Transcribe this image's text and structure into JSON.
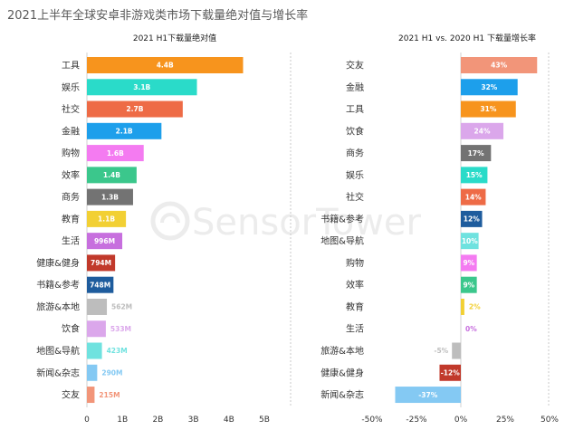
{
  "title": "2021上半年全球安卓非游戏类市场下载量绝对值与增长率",
  "watermark": "SensorTower",
  "category_colors": {
    "工具": "#F7941D",
    "娱乐": "#2ADBC9",
    "社交": "#EE6B46",
    "金融": "#1D9FEB",
    "购物": "#F47BF1",
    "效率": "#3BC78C",
    "商务": "#737373",
    "教育": "#F2D034",
    "生活": "#C76FDE",
    "健康&健身": "#C1392B",
    "书籍&参考": "#1E5C9D",
    "旅游&本地": "#BDBDBD",
    "饮食": "#DBA7EB",
    "地图&导航": "#6FE2DF",
    "新闻&杂志": "#84C9F3",
    "交友": "#F29579"
  },
  "chart_data": [
    {
      "type": "bar",
      "horizontal": true,
      "title": "2021 H1下载量绝对值",
      "categories": [
        "工具",
        "娱乐",
        "社交",
        "金融",
        "购物",
        "效率",
        "商务",
        "教育",
        "生活",
        "健康&健身",
        "书籍&参考",
        "旅游&本地",
        "饮食",
        "地图&导航",
        "新闻&杂志",
        "交友"
      ],
      "values": [
        4.4,
        3.1,
        2.7,
        2.1,
        1.6,
        1.4,
        1.3,
        1.1,
        0.996,
        0.794,
        0.748,
        0.562,
        0.533,
        0.423,
        0.29,
        0.215
      ],
      "value_labels": [
        "4.4B",
        "3.1B",
        "2.7B",
        "2.1B",
        "1.6B",
        "1.4B",
        "1.3B",
        "1.1B",
        "996M",
        "794M",
        "748M",
        "562M",
        "533M",
        "423M",
        "290M",
        "215M"
      ],
      "xlim": [
        0,
        5
      ],
      "x_tick_values": [
        0,
        1,
        2,
        3,
        4,
        5
      ],
      "x_tick_labels": [
        "0",
        "1B",
        "2B",
        "3B",
        "4B",
        "5B"
      ]
    },
    {
      "type": "bar",
      "horizontal": true,
      "title": "2021 H1 vs. 2020 H1 下载量增长率",
      "categories": [
        "交友",
        "金融",
        "工具",
        "饮食",
        "商务",
        "娱乐",
        "社交",
        "书籍&参考",
        "地图&导航",
        "购物",
        "效率",
        "教育",
        "生活",
        "旅游&本地",
        "健康&健身",
        "新闻&杂志"
      ],
      "values": [
        43,
        32,
        31,
        24,
        17,
        15,
        14,
        12,
        10,
        9,
        9,
        2,
        0,
        -5,
        -12,
        -37
      ],
      "value_labels": [
        "43%",
        "32%",
        "31%",
        "24%",
        "17%",
        "15%",
        "14%",
        "12%",
        "10%",
        "9%",
        "9%",
        "2%",
        "0%",
        "-5%",
        "-12%",
        "-37%"
      ],
      "xlim": [
        -50,
        50
      ],
      "x_tick_values": [
        -50,
        -25,
        0,
        25,
        50
      ],
      "x_tick_labels": [
        "-50%",
        "-25%",
        "0%",
        "25%",
        "50%"
      ]
    }
  ]
}
